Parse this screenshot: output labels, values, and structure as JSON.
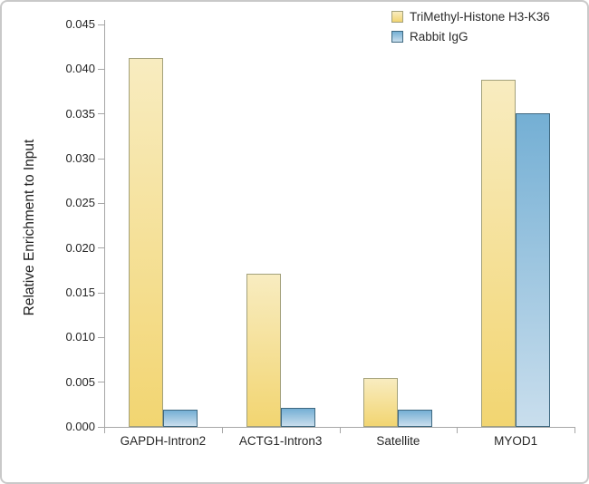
{
  "figure": {
    "background": "#FFFFFF",
    "border_color": "#C9C9C9"
  },
  "chart_data": {
    "type": "bar",
    "title": "",
    "ylabel": "Relative Enrichment to Input",
    "xlabel": "",
    "categories": [
      "GAPDH-Intron2",
      "ACTG1-Intron3",
      "Satellite",
      "MYOD1"
    ],
    "series": [
      {
        "name": "TriMethyl-Histone H3-K36",
        "values": [
          0.0413,
          0.0171,
          0.0055,
          0.0388
        ],
        "fill_top": "#F8ECC0",
        "fill_bottom": "#F2D571",
        "border": "#A3A17B"
      },
      {
        "name": "Rabbit IgG",
        "values": [
          0.0019,
          0.0021,
          0.0019,
          0.0351
        ],
        "fill_top": "#74AFD4",
        "fill_bottom": "#C9DEED",
        "border": "#3E6880"
      }
    ],
    "ylim": [
      0,
      0.045
    ],
    "ytick_step": 0.005,
    "yticks": [
      "0.000",
      "0.005",
      "0.010",
      "0.015",
      "0.020",
      "0.025",
      "0.030",
      "0.035",
      "0.040",
      "0.045"
    ],
    "grid": false,
    "legend_position": "top-right",
    "axis_color": "#A6A6A6",
    "text_color": "#262626"
  }
}
